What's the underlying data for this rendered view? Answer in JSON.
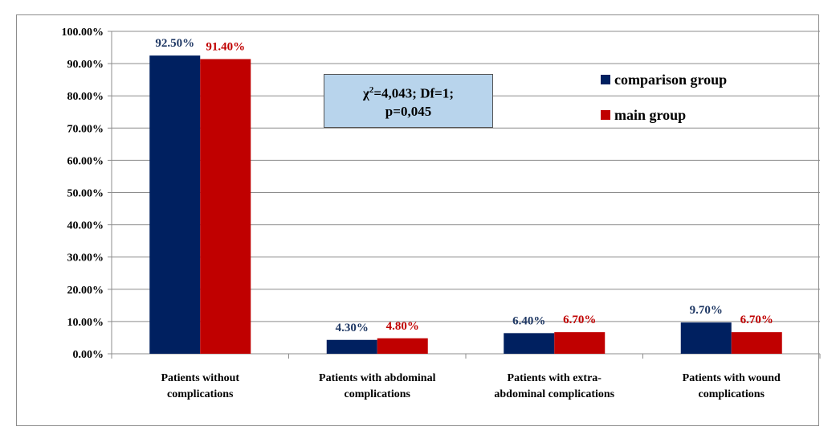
{
  "chart_data": {
    "type": "bar",
    "categories": [
      [
        "Patients without",
        "complications"
      ],
      [
        "Patients with abdominal",
        "complications"
      ],
      [
        "Patients with extra-",
        "abdominal complications"
      ],
      [
        "Patients with wound",
        "complications"
      ]
    ],
    "series": [
      {
        "name": "comparison group",
        "color": "#002060",
        "label_color": "#1f3864",
        "values": [
          92.5,
          4.3,
          6.4,
          9.7
        ],
        "labels": [
          "92.50%",
          "4.30%",
          "6.40%",
          "9.70%"
        ]
      },
      {
        "name": "main group",
        "color": "#c00000",
        "label_color": "#c00000",
        "values": [
          91.4,
          4.8,
          6.7,
          6.7
        ],
        "labels": [
          "91.40%",
          "4.80%",
          "6.70%",
          "6.70%"
        ]
      }
    ],
    "y_ticks": [
      "0.00%",
      "10.00%",
      "20.00%",
      "30.00%",
      "40.00%",
      "50.00%",
      "60.00%",
      "70.00%",
      "80.00%",
      "90.00%",
      "100.00%"
    ],
    "ylim": [
      0,
      100
    ],
    "grid": true,
    "legend_position": "top-right",
    "annotation": {
      "line1": "=4,043; Df=1;",
      "chi_symbol": "χ",
      "superscript": "2",
      "line2": "p=0,045"
    }
  }
}
